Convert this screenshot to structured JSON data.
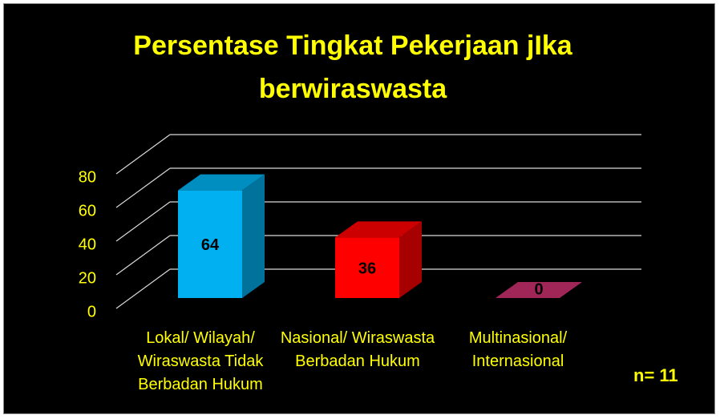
{
  "chart_data": {
    "type": "bar3d",
    "title": "Persentase Tingkat Pekerjaan jIka berwiraswasta",
    "categories": [
      "Lokal/ Wilayah/ Wiraswasta Tidak Berbadan Hukum",
      "Nasional/ Wiraswasta Berbadan Hukum",
      "Multinasional/ Internasional"
    ],
    "values": [
      64,
      36,
      0
    ],
    "colors": [
      "#00b0f0",
      "#ff0000",
      "#c8306e"
    ],
    "ylim": [
      0,
      80
    ],
    "yticks": [
      0,
      20,
      40,
      60,
      80
    ],
    "grid": true,
    "annotation": "n= 11"
  }
}
